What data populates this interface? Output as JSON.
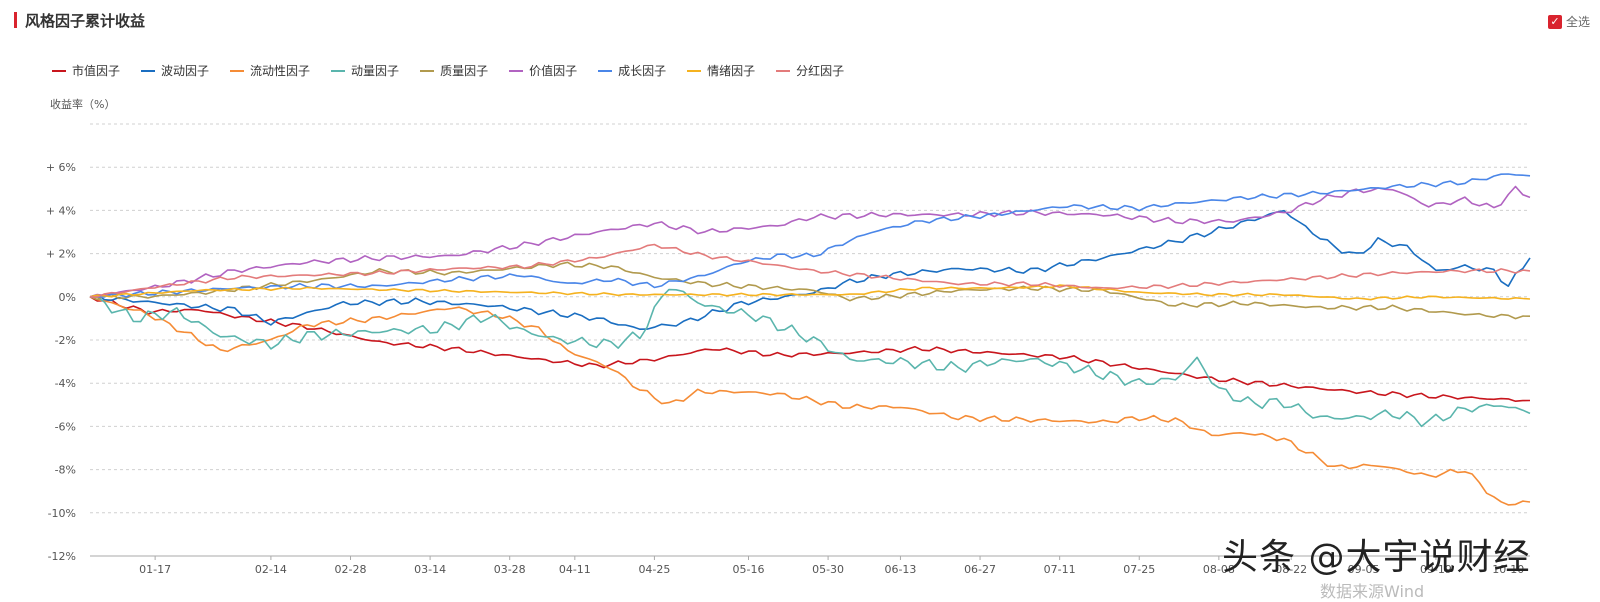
{
  "header": {
    "title": "风格因子累计收益",
    "select_all": "全选"
  },
  "watermark": "头条 @大宇说财经",
  "watermark_sub": "数据来源Wind",
  "chart_data": {
    "type": "line",
    "ylabel": "收益率（%）",
    "ylim": [
      -12,
      8
    ],
    "yticks": [
      -12,
      -10,
      -8,
      -6,
      -4,
      -2,
      0,
      2,
      4,
      6
    ],
    "ytick_labels": [
      "-12%",
      "-10%",
      "-8%",
      "-6%",
      "-4%",
      "-2%",
      "0%",
      "+ 2%",
      "+ 4%",
      "+ 6%"
    ],
    "x_count": 200,
    "xticks": [
      {
        "i": 9,
        "label": "01-17"
      },
      {
        "i": 25,
        "label": "02-14"
      },
      {
        "i": 36,
        "label": "02-28"
      },
      {
        "i": 47,
        "label": "03-14"
      },
      {
        "i": 58,
        "label": "03-28"
      },
      {
        "i": 67,
        "label": "04-11"
      },
      {
        "i": 78,
        "label": "04-25"
      },
      {
        "i": 91,
        "label": "05-16"
      },
      {
        "i": 102,
        "label": "05-30"
      },
      {
        "i": 112,
        "label": "06-13"
      },
      {
        "i": 123,
        "label": "06-27"
      },
      {
        "i": 134,
        "label": "07-11"
      },
      {
        "i": 145,
        "label": "07-25"
      },
      {
        "i": 156,
        "label": "08-08"
      },
      {
        "i": 166,
        "label": "08-22"
      },
      {
        "i": 176,
        "label": "09-05"
      },
      {
        "i": 186,
        "label": "09-19"
      },
      {
        "i": 196,
        "label": "10-10"
      }
    ],
    "grid": true,
    "legend_position": "top-left",
    "series": [
      {
        "name": "市值因子",
        "color": "#c8161d",
        "anchors": [
          [
            0,
            0
          ],
          [
            8,
            -0.7
          ],
          [
            15,
            -0.6
          ],
          [
            20,
            -0.9
          ],
          [
            30,
            -1.4
          ],
          [
            40,
            -2.1
          ],
          [
            50,
            -2.4
          ],
          [
            62,
            -2.9
          ],
          [
            70,
            -3.2
          ],
          [
            78,
            -2.9
          ],
          [
            86,
            -2.4
          ],
          [
            95,
            -2.7
          ],
          [
            105,
            -2.6
          ],
          [
            115,
            -2.4
          ],
          [
            125,
            -2.6
          ],
          [
            135,
            -2.8
          ],
          [
            145,
            -3.3
          ],
          [
            155,
            -3.8
          ],
          [
            165,
            -4.1
          ],
          [
            175,
            -4.4
          ],
          [
            185,
            -4.6
          ],
          [
            199,
            -4.8
          ]
        ],
        "noise": 0.12
      },
      {
        "name": "波动因子",
        "color": "#1a6ec1",
        "anchors": [
          [
            0,
            0
          ],
          [
            10,
            -0.3
          ],
          [
            20,
            -0.6
          ],
          [
            25,
            -1.2
          ],
          [
            35,
            -0.3
          ],
          [
            45,
            -0.2
          ],
          [
            55,
            -0.4
          ],
          [
            65,
            -0.8
          ],
          [
            70,
            -1.0
          ],
          [
            76,
            -1.5
          ],
          [
            82,
            -1.2
          ],
          [
            90,
            -0.3
          ],
          [
            100,
            0.2
          ],
          [
            105,
            0.7
          ],
          [
            110,
            1.0
          ],
          [
            120,
            1.3
          ],
          [
            130,
            1.2
          ],
          [
            140,
            1.8
          ],
          [
            148,
            2.4
          ],
          [
            155,
            3.0
          ],
          [
            160,
            3.5
          ],
          [
            165,
            4.0
          ],
          [
            168,
            3.2
          ],
          [
            172,
            2.3
          ],
          [
            175,
            1.9
          ],
          [
            178,
            2.6
          ],
          [
            182,
            2.3
          ],
          [
            186,
            1.2
          ],
          [
            190,
            1.4
          ],
          [
            194,
            1.2
          ],
          [
            196,
            0.5
          ],
          [
            199,
            1.8
          ]
        ],
        "noise": 0.15
      },
      {
        "name": "流动性因子",
        "color": "#f58c36",
        "anchors": [
          [
            0,
            0
          ],
          [
            8,
            -0.8
          ],
          [
            14,
            -1.8
          ],
          [
            18,
            -2.5
          ],
          [
            25,
            -2.0
          ],
          [
            30,
            -1.3
          ],
          [
            40,
            -1.0
          ],
          [
            50,
            -0.5
          ],
          [
            57,
            -0.9
          ],
          [
            62,
            -1.5
          ],
          [
            66,
            -2.5
          ],
          [
            72,
            -3.3
          ],
          [
            76,
            -4.3
          ],
          [
            80,
            -5.0
          ],
          [
            84,
            -4.4
          ],
          [
            90,
            -4.4
          ],
          [
            95,
            -4.5
          ],
          [
            100,
            -4.8
          ],
          [
            105,
            -5.1
          ],
          [
            112,
            -5.1
          ],
          [
            120,
            -5.6
          ],
          [
            130,
            -5.7
          ],
          [
            140,
            -5.8
          ],
          [
            145,
            -5.6
          ],
          [
            150,
            -5.7
          ],
          [
            155,
            -6.4
          ],
          [
            160,
            -6.3
          ],
          [
            165,
            -6.6
          ],
          [
            172,
            -7.9
          ],
          [
            178,
            -7.8
          ],
          [
            185,
            -8.3
          ],
          [
            190,
            -8.0
          ],
          [
            195,
            -9.6
          ],
          [
            199,
            -9.5
          ]
        ],
        "noise": 0.14
      },
      {
        "name": "动量因子",
        "color": "#5ab5ad",
        "anchors": [
          [
            0,
            0
          ],
          [
            6,
            -1.0
          ],
          [
            12,
            -0.7
          ],
          [
            18,
            -1.8
          ],
          [
            25,
            -2.2
          ],
          [
            30,
            -1.8
          ],
          [
            40,
            -1.6
          ],
          [
            48,
            -1.5
          ],
          [
            55,
            -0.9
          ],
          [
            60,
            -1.6
          ],
          [
            65,
            -2.0
          ],
          [
            72,
            -2.2
          ],
          [
            76,
            -1.8
          ],
          [
            80,
            0.5
          ],
          [
            85,
            -0.4
          ],
          [
            92,
            -0.9
          ],
          [
            100,
            -2.0
          ],
          [
            105,
            -2.9
          ],
          [
            112,
            -3.0
          ],
          [
            120,
            -3.3
          ],
          [
            125,
            -3.0
          ],
          [
            130,
            -2.9
          ],
          [
            135,
            -3.2
          ],
          [
            140,
            -3.6
          ],
          [
            145,
            -4.0
          ],
          [
            150,
            -3.8
          ],
          [
            153,
            -2.9
          ],
          [
            156,
            -4.3
          ],
          [
            160,
            -4.9
          ],
          [
            165,
            -4.9
          ],
          [
            170,
            -5.6
          ],
          [
            175,
            -5.6
          ],
          [
            180,
            -5.4
          ],
          [
            185,
            -5.8
          ],
          [
            190,
            -5.2
          ],
          [
            195,
            -5.0
          ],
          [
            199,
            -5.4
          ]
        ],
        "noise": 0.28
      },
      {
        "name": "质量因子",
        "color": "#b19a4e",
        "anchors": [
          [
            0,
            0
          ],
          [
            8,
            0.0
          ],
          [
            16,
            0.2
          ],
          [
            24,
            0.5
          ],
          [
            32,
            0.8
          ],
          [
            40,
            1.2
          ],
          [
            50,
            1.1
          ],
          [
            58,
            1.3
          ],
          [
            65,
            1.5
          ],
          [
            72,
            1.4
          ],
          [
            78,
            0.9
          ],
          [
            85,
            0.6
          ],
          [
            95,
            0.4
          ],
          [
            100,
            0.3
          ],
          [
            105,
            -0.1
          ],
          [
            110,
            0.0
          ],
          [
            120,
            0.3
          ],
          [
            130,
            0.4
          ],
          [
            140,
            0.3
          ],
          [
            150,
            -0.4
          ],
          [
            160,
            -0.3
          ],
          [
            170,
            -0.5
          ],
          [
            180,
            -0.5
          ],
          [
            190,
            -0.8
          ],
          [
            195,
            -0.9
          ],
          [
            199,
            -0.9
          ]
        ],
        "noise": 0.12
      },
      {
        "name": "价值因子",
        "color": "#b163c1",
        "anchors": [
          [
            0,
            0
          ],
          [
            10,
            0.5
          ],
          [
            20,
            1.2
          ],
          [
            30,
            1.6
          ],
          [
            40,
            1.8
          ],
          [
            50,
            1.9
          ],
          [
            60,
            2.4
          ],
          [
            70,
            3.0
          ],
          [
            78,
            3.4
          ],
          [
            85,
            3.0
          ],
          [
            95,
            3.3
          ],
          [
            100,
            3.7
          ],
          [
            110,
            3.8
          ],
          [
            120,
            3.8
          ],
          [
            130,
            3.9
          ],
          [
            140,
            3.8
          ],
          [
            150,
            3.5
          ],
          [
            158,
            3.5
          ],
          [
            165,
            3.9
          ],
          [
            170,
            4.5
          ],
          [
            175,
            4.9
          ],
          [
            180,
            5.0
          ],
          [
            185,
            4.2
          ],
          [
            190,
            4.5
          ],
          [
            194,
            4.1
          ],
          [
            197,
            5.0
          ],
          [
            199,
            4.6
          ]
        ],
        "noise": 0.14
      },
      {
        "name": "成长因子",
        "color": "#4a86e8",
        "anchors": [
          [
            0,
            0
          ],
          [
            10,
            0.2
          ],
          [
            20,
            0.4
          ],
          [
            30,
            0.5
          ],
          [
            40,
            0.5
          ],
          [
            50,
            0.8
          ],
          [
            60,
            1.0
          ],
          [
            66,
            0.6
          ],
          [
            72,
            0.8
          ],
          [
            78,
            0.5
          ],
          [
            85,
            1.0
          ],
          [
            90,
            1.6
          ],
          [
            95,
            1.9
          ],
          [
            100,
            1.9
          ],
          [
            105,
            2.6
          ],
          [
            108,
            3.0
          ],
          [
            115,
            3.5
          ],
          [
            125,
            3.8
          ],
          [
            135,
            4.2
          ],
          [
            145,
            4.1
          ],
          [
            150,
            4.3
          ],
          [
            160,
            4.6
          ],
          [
            170,
            4.8
          ],
          [
            180,
            5.1
          ],
          [
            190,
            5.3
          ],
          [
            196,
            5.7
          ],
          [
            199,
            5.6
          ]
        ],
        "noise": 0.12
      },
      {
        "name": "情绪因子",
        "color": "#f5b21f",
        "anchors": [
          [
            0,
            0
          ],
          [
            15,
            0.3
          ],
          [
            30,
            0.4
          ],
          [
            45,
            0.3
          ],
          [
            60,
            0.2
          ],
          [
            75,
            0.1
          ],
          [
            90,
            0.1
          ],
          [
            105,
            0.1
          ],
          [
            115,
            0.4
          ],
          [
            125,
            0.4
          ],
          [
            135,
            0.5
          ],
          [
            145,
            0.2
          ],
          [
            155,
            0.1
          ],
          [
            165,
            0.1
          ],
          [
            175,
            -0.1
          ],
          [
            185,
            0.0
          ],
          [
            199,
            -0.1
          ]
        ],
        "noise": 0.06
      },
      {
        "name": "分红因子",
        "color": "#e37b7b",
        "anchors": [
          [
            0,
            0
          ],
          [
            10,
            0.5
          ],
          [
            20,
            0.9
          ],
          [
            30,
            1.0
          ],
          [
            40,
            1.1
          ],
          [
            50,
            1.3
          ],
          [
            60,
            1.4
          ],
          [
            70,
            1.8
          ],
          [
            78,
            2.4
          ],
          [
            85,
            1.9
          ],
          [
            92,
            1.6
          ],
          [
            100,
            1.2
          ],
          [
            110,
            0.9
          ],
          [
            120,
            0.6
          ],
          [
            130,
            0.6
          ],
          [
            140,
            0.4
          ],
          [
            150,
            0.5
          ],
          [
            160,
            0.7
          ],
          [
            170,
            0.9
          ],
          [
            180,
            1.1
          ],
          [
            190,
            1.2
          ],
          [
            199,
            1.2
          ]
        ],
        "noise": 0.1
      }
    ]
  }
}
